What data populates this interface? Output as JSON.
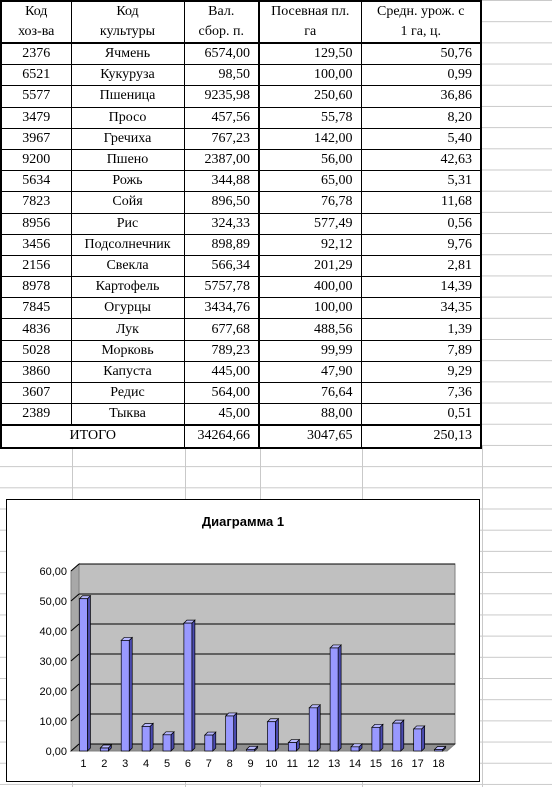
{
  "table": {
    "headers_line1": [
      "Код",
      "Код",
      "Вал.",
      "Посевная пл.",
      "Средн. урож. с"
    ],
    "headers_line2": [
      "хоз-ва",
      "культуры",
      "сбор. п.",
      "га",
      "1 га, ц."
    ],
    "rows": [
      [
        "2376",
        "Ячмень",
        "6574,00",
        "129,50",
        "50,76"
      ],
      [
        "6521",
        "Кукуруза",
        "98,50",
        "100,00",
        "0,99"
      ],
      [
        "5577",
        "Пшеница",
        "9235,98",
        "250,60",
        "36,86"
      ],
      [
        "3479",
        "Просо",
        "457,56",
        "55,78",
        "8,20"
      ],
      [
        "3967",
        "Гречиха",
        "767,23",
        "142,00",
        "5,40"
      ],
      [
        "9200",
        "Пшено",
        "2387,00",
        "56,00",
        "42,63"
      ],
      [
        "5634",
        "Рожь",
        "344,88",
        "65,00",
        "5,31"
      ],
      [
        "7823",
        "Сойя",
        "896,50",
        "76,78",
        "11,68"
      ],
      [
        "8956",
        "Рис",
        "324,33",
        "577,49",
        "0,56"
      ],
      [
        "3456",
        "Подсолнечник",
        "898,89",
        "92,12",
        "9,76"
      ],
      [
        "2156",
        "Свекла",
        "566,34",
        "201,29",
        "2,81"
      ],
      [
        "8978",
        "Картофель",
        "5757,78",
        "400,00",
        "14,39"
      ],
      [
        "7845",
        "Огурцы",
        "3434,76",
        "100,00",
        "34,35"
      ],
      [
        "4836",
        "Лук",
        "677,68",
        "488,56",
        "1,39"
      ],
      [
        "5028",
        "Морковь",
        "789,23",
        "99,99",
        "7,89"
      ],
      [
        "3860",
        "Капуста",
        "445,00",
        "47,90",
        "9,29"
      ],
      [
        "3607",
        "Редис",
        "564,00",
        "76,64",
        "7,36"
      ],
      [
        "2389",
        "Тыква",
        "45,00",
        "88,00",
        "0,51"
      ]
    ],
    "total": {
      "label": "ИТОГО",
      "gross": "34264,66",
      "area": "3047,65",
      "yield": "250,13"
    }
  },
  "chart_data": {
    "type": "bar",
    "title": "Диаграмма 1",
    "categories": [
      "1",
      "2",
      "3",
      "4",
      "5",
      "6",
      "7",
      "8",
      "9",
      "10",
      "11",
      "12",
      "13",
      "14",
      "15",
      "16",
      "17",
      "18"
    ],
    "values": [
      50.76,
      0.99,
      36.86,
      8.2,
      5.4,
      42.63,
      5.31,
      11.68,
      0.56,
      9.76,
      2.81,
      14.39,
      34.35,
      1.39,
      7.89,
      9.29,
      7.36,
      0.51
    ],
    "yticks": [
      "0,00",
      "10,00",
      "20,00",
      "30,00",
      "40,00",
      "50,00",
      "60,00"
    ],
    "ylim": [
      0,
      60
    ],
    "grid": true,
    "legend": "none",
    "bar_color": "#9999ff",
    "plot_background": "#c0c0c0",
    "chart_background": "#ffffff"
  }
}
